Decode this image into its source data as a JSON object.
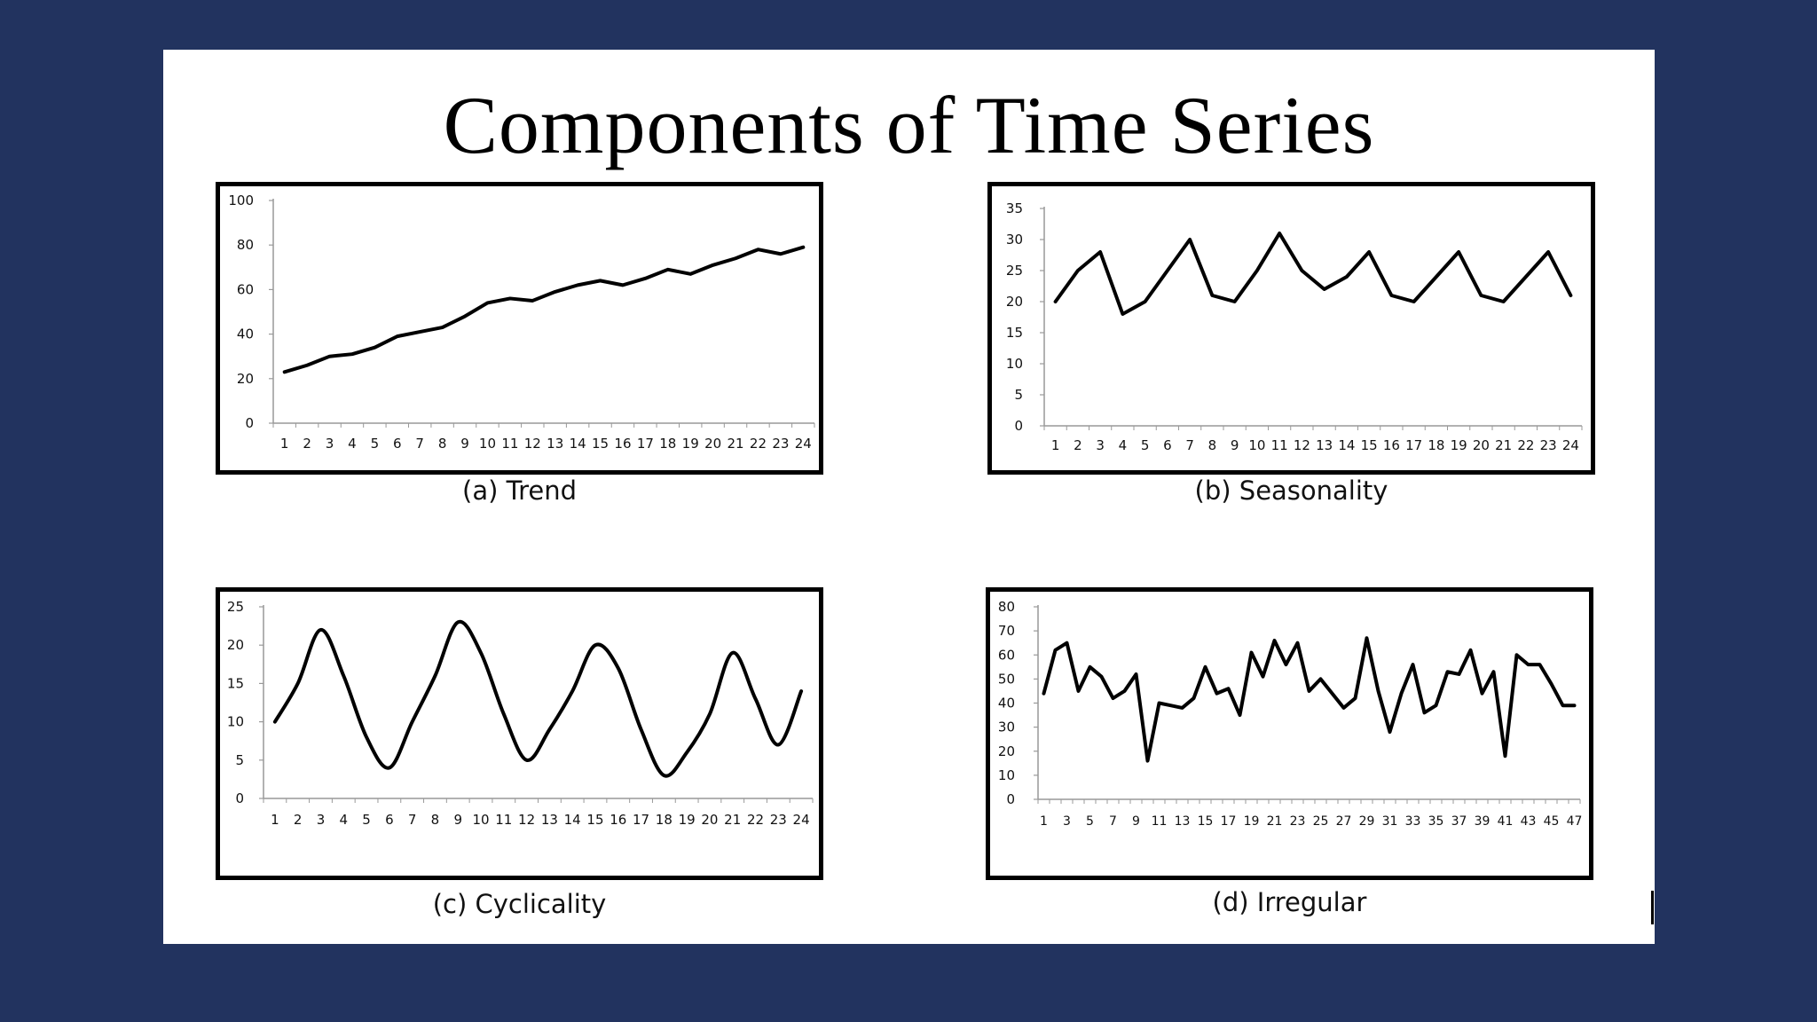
{
  "slide": {
    "title": "Components of Time Series"
  },
  "chart_data": [
    {
      "type": "line",
      "caption": "(a) Trend",
      "x": [
        1,
        2,
        3,
        4,
        5,
        6,
        7,
        8,
        9,
        10,
        11,
        12,
        13,
        14,
        15,
        16,
        17,
        18,
        19,
        20,
        21,
        22,
        23,
        24
      ],
      "values": [
        23,
        26,
        30,
        31,
        34,
        39,
        41,
        43,
        48,
        54,
        56,
        55,
        59,
        62,
        64,
        62,
        65,
        69,
        67,
        71,
        74,
        78,
        76,
        79
      ],
      "ylim": [
        0,
        100
      ],
      "yticks": [
        0,
        20,
        40,
        60,
        80,
        100
      ]
    },
    {
      "type": "line",
      "caption": "(b)  Seasonality",
      "x": [
        1,
        2,
        3,
        4,
        5,
        6,
        7,
        8,
        9,
        10,
        11,
        12,
        13,
        14,
        15,
        16,
        17,
        18,
        19,
        20,
        21,
        22,
        23,
        24
      ],
      "values": [
        20,
        25,
        28,
        18,
        20,
        25,
        30,
        21,
        20,
        25,
        31,
        25,
        22,
        24,
        28,
        21,
        20,
        24,
        28,
        21,
        20,
        24,
        28,
        21
      ],
      "ylim": [
        0,
        35
      ],
      "yticks": [
        0,
        5,
        10,
        15,
        20,
        25,
        30,
        35
      ]
    },
    {
      "type": "line",
      "caption": "(c) Cyclicality",
      "x": [
        1,
        2,
        3,
        4,
        5,
        6,
        7,
        8,
        9,
        10,
        11,
        12,
        13,
        14,
        15,
        16,
        17,
        18,
        19,
        20,
        21,
        22,
        23,
        24
      ],
      "values": [
        10,
        15,
        22,
        16,
        8,
        4,
        10,
        16,
        23,
        19,
        11,
        5,
        9,
        14,
        20,
        17,
        9,
        3,
        6,
        11,
        19,
        13,
        7,
        14
      ],
      "ylim": [
        0,
        25
      ],
      "yticks": [
        0,
        5,
        10,
        15,
        20,
        25
      ]
    },
    {
      "type": "line",
      "caption": "(d) Irregular",
      "x": [
        1,
        2,
        3,
        4,
        5,
        6,
        7,
        8,
        9,
        10,
        11,
        12,
        13,
        14,
        15,
        16,
        17,
        18,
        19,
        20,
        21,
        22,
        23,
        24,
        25,
        26,
        27,
        28,
        29,
        30,
        31,
        32,
        33,
        34,
        35,
        36,
        37,
        38,
        39,
        40,
        41,
        42,
        43,
        44,
        45,
        46,
        47
      ],
      "values": [
        44,
        62,
        65,
        45,
        55,
        51,
        42,
        45,
        52,
        16,
        40,
        39,
        38,
        42,
        55,
        44,
        46,
        35,
        61,
        51,
        66,
        56,
        65,
        45,
        50,
        44,
        38,
        42,
        67,
        45,
        28,
        44,
        56,
        36,
        39,
        53,
        52,
        62,
        44,
        53,
        18,
        60,
        56,
        56,
        48,
        39,
        39
      ],
      "ylim": [
        0,
        80
      ],
      "yticks": [
        0,
        10,
        20,
        30,
        40,
        50,
        60,
        70,
        80
      ],
      "xtick_labels": [
        "1",
        "",
        "3",
        "",
        "5",
        "",
        "7",
        "",
        "9",
        "",
        "11",
        "",
        "13",
        "",
        "15",
        "",
        "17",
        "",
        "19",
        "",
        "21",
        "",
        "23",
        "",
        "25",
        "",
        "27",
        "",
        "29",
        "",
        "31",
        "",
        "33",
        "",
        "35",
        "",
        "37",
        "",
        "39",
        "",
        "41",
        "",
        "43",
        "",
        "45",
        "",
        "47"
      ]
    }
  ]
}
